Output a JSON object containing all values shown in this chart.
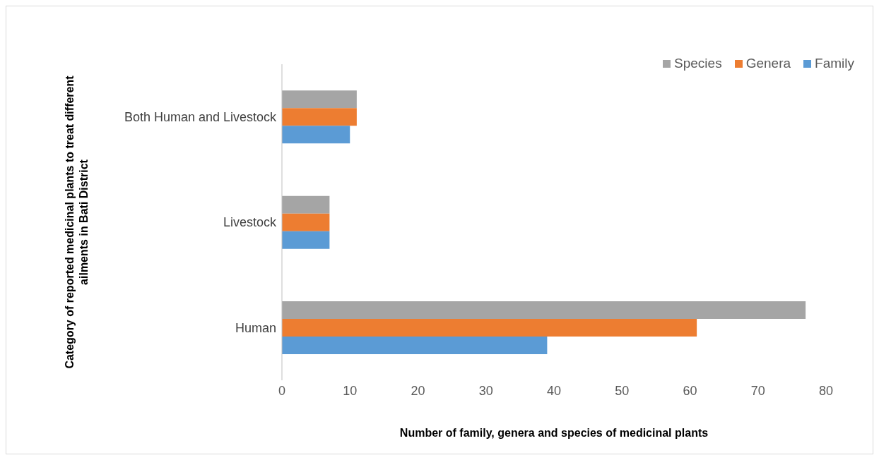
{
  "chart_data": {
    "type": "bar",
    "orientation": "horizontal",
    "categories": [
      "Both Human and Livestock",
      "Livestock",
      "Human"
    ],
    "series": [
      {
        "name": "Species",
        "color": "#a5a5a5",
        "values": [
          11,
          7,
          77
        ]
      },
      {
        "name": "Genera",
        "color": "#ed7d31",
        "values": [
          11,
          7,
          61
        ]
      },
      {
        "name": "Family",
        "color": "#5b9bd5",
        "values": [
          10,
          7,
          39
        ]
      }
    ],
    "xlim": [
      0,
      80
    ],
    "xticks": [
      0,
      10,
      20,
      30,
      40,
      50,
      60,
      70,
      80
    ],
    "xlabel": "Number of family, genera and species of medicinal plants",
    "ylabel": "Category of reported medicinal plants to treat different ailments in Bati District",
    "legend": "top right",
    "grid": false
  }
}
